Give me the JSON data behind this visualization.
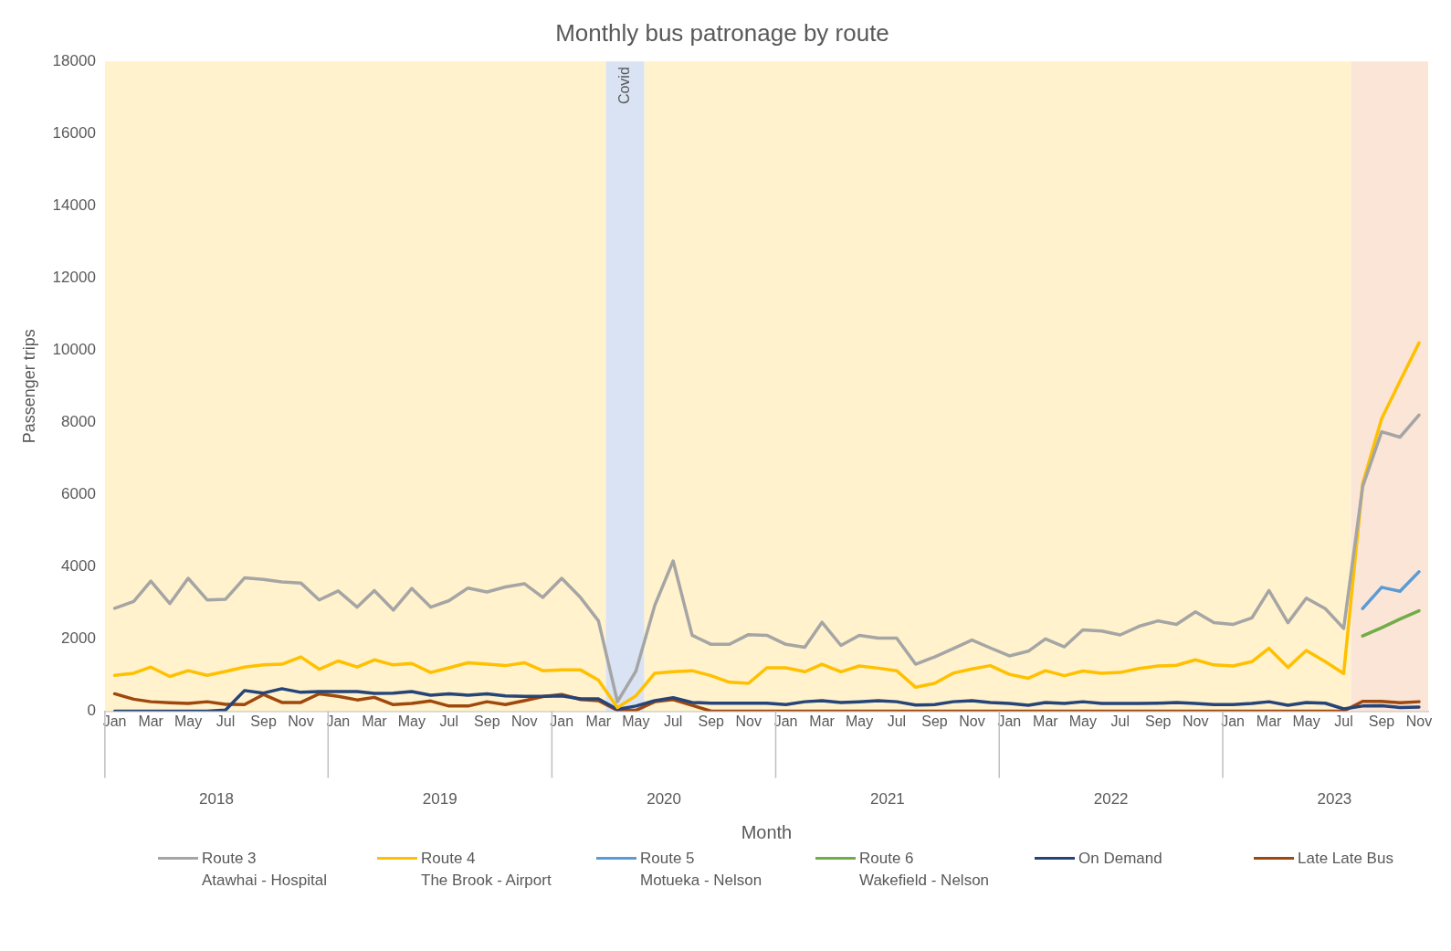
{
  "chart_data": {
    "type": "line",
    "title": "Monthly bus patronage by route",
    "xlabel": "Month",
    "ylabel": "Passenger trips",
    "x": [
      "2018-01",
      "2018-02",
      "2018-03",
      "2018-04",
      "2018-05",
      "2018-06",
      "2018-07",
      "2018-08",
      "2018-09",
      "2018-10",
      "2018-11",
      "2018-12",
      "2019-01",
      "2019-02",
      "2019-03",
      "2019-04",
      "2019-05",
      "2019-06",
      "2019-07",
      "2019-08",
      "2019-09",
      "2019-10",
      "2019-11",
      "2019-12",
      "2020-01",
      "2020-02",
      "2020-03",
      "2020-04",
      "2020-05",
      "2020-06",
      "2020-07",
      "2020-08",
      "2020-09",
      "2020-10",
      "2020-11",
      "2020-12",
      "2021-01",
      "2021-02",
      "2021-03",
      "2021-04",
      "2021-05",
      "2021-06",
      "2021-07",
      "2021-08",
      "2021-09",
      "2021-10",
      "2021-11",
      "2021-12",
      "2022-01",
      "2022-02",
      "2022-03",
      "2022-04",
      "2022-05",
      "2022-06",
      "2022-07",
      "2022-08",
      "2022-09",
      "2022-10",
      "2022-11",
      "2022-12",
      "2023-01",
      "2023-02",
      "2023-03",
      "2023-04",
      "2023-05",
      "2023-06",
      "2023-07",
      "2023-08",
      "2023-09",
      "2023-10",
      "2023-11"
    ],
    "series": [
      {
        "name": "Route 3\nAtawhai - Hospital",
        "color": "#a5a5a5",
        "values": [
          2850,
          3040,
          3600,
          2980,
          3680,
          3080,
          3100,
          3690,
          3650,
          3580,
          3550,
          3080,
          3330,
          2880,
          3340,
          2800,
          3400,
          2880,
          3060,
          3410,
          3300,
          3440,
          3530,
          3150,
          3680,
          3140,
          2500,
          260,
          1100,
          2930,
          4160,
          2100,
          1850,
          1850,
          2120,
          2100,
          1850,
          1770,
          2460,
          1820,
          2100,
          2020,
          2020,
          1300,
          1500,
          1730,
          1970,
          1750,
          1530,
          1660,
          2000,
          1780,
          2250,
          2220,
          2110,
          2350,
          2500,
          2400,
          2750,
          2450,
          2400,
          2580,
          3340,
          2450,
          3130,
          2840,
          2290,
          6220,
          7740,
          7590,
          8200
        ]
      },
      {
        "name": "Route 4\nThe Brook - Airport",
        "color": "#ffc000",
        "values": [
          990,
          1050,
          1220,
          960,
          1120,
          990,
          1100,
          1220,
          1280,
          1300,
          1500,
          1160,
          1390,
          1220,
          1420,
          1280,
          1320,
          1070,
          1200,
          1340,
          1300,
          1260,
          1340,
          1120,
          1140,
          1140,
          860,
          100,
          420,
          1050,
          1090,
          1120,
          980,
          800,
          770,
          1200,
          1200,
          1090,
          1300,
          1090,
          1250,
          1190,
          1120,
          660,
          770,
          1050,
          1170,
          1260,
          1020,
          910,
          1120,
          980,
          1110,
          1050,
          1070,
          1180,
          1250,
          1270,
          1420,
          1280,
          1250,
          1370,
          1740,
          1210,
          1680,
          1370,
          1040,
          6300,
          8100,
          9140,
          10200
        ]
      },
      {
        "name": "Route 5\nMotueka - Nelson",
        "color": "#5b9bd5",
        "x": [
          "2023-08",
          "2023-09",
          "2023-10",
          "2023-11"
        ],
        "values": [
          2840,
          3430,
          3320,
          3860
        ]
      },
      {
        "name": "Route 6\nWakefield - Nelson",
        "color": "#70ad47",
        "x": [
          "2023-08",
          "2023-09",
          "2023-10",
          "2023-11"
        ],
        "values": [
          2080,
          2310,
          2550,
          2780
        ]
      },
      {
        "name": "On Demand",
        "color": "#264478",
        "values": [
          0,
          0,
          0,
          0,
          0,
          0,
          30,
          570,
          500,
          620,
          520,
          540,
          540,
          540,
          490,
          500,
          540,
          440,
          480,
          440,
          480,
          420,
          410,
          410,
          420,
          340,
          340,
          50,
          140,
          290,
          370,
          240,
          220,
          220,
          220,
          220,
          180,
          260,
          290,
          240,
          260,
          290,
          260,
          170,
          180,
          260,
          290,
          240,
          210,
          160,
          240,
          210,
          260,
          210,
          210,
          210,
          220,
          240,
          210,
          180,
          180,
          210,
          260,
          160,
          240,
          220,
          60,
          140,
          150,
          100,
          110
        ]
      },
      {
        "name": "Late Late Bus",
        "color": "#9e480e",
        "values": [
          480,
          330,
          260,
          230,
          210,
          260,
          190,
          180,
          460,
          240,
          240,
          480,
          410,
          310,
          380,
          180,
          210,
          280,
          140,
          140,
          260,
          180,
          290,
          400,
          460,
          320,
          290,
          20,
          20,
          260,
          320,
          160,
          0,
          0,
          0,
          0,
          0,
          0,
          0,
          0,
          0,
          0,
          0,
          0,
          0,
          0,
          0,
          0,
          0,
          0,
          0,
          0,
          0,
          0,
          0,
          0,
          0,
          0,
          0,
          0,
          0,
          0,
          0,
          0,
          0,
          0,
          0,
          270,
          270,
          230,
          260
        ]
      }
    ],
    "xlim": [
      "2017-12-16",
      "2023-11-16"
    ],
    "xticks": [
      {
        "value": "2018-01",
        "label": "Jan"
      },
      {
        "value": "2018-03",
        "label": "Mar"
      },
      {
        "value": "2018-05",
        "label": "May"
      },
      {
        "value": "2018-07",
        "label": "Jul"
      },
      {
        "value": "2018-09",
        "label": "Sep"
      },
      {
        "value": "2018-11",
        "label": "Nov"
      },
      {
        "value": "2019-01",
        "label": "Jan"
      },
      {
        "value": "2019-03",
        "label": "Mar"
      },
      {
        "value": "2019-05",
        "label": "May"
      },
      {
        "value": "2019-07",
        "label": "Jul"
      },
      {
        "value": "2019-09",
        "label": "Sep"
      },
      {
        "value": "2019-11",
        "label": "Nov"
      },
      {
        "value": "2020-01",
        "label": "Jan"
      },
      {
        "value": "2020-03",
        "label": "Mar"
      },
      {
        "value": "2020-05",
        "label": "May"
      },
      {
        "value": "2020-07",
        "label": "Jul"
      },
      {
        "value": "2020-09",
        "label": "Sep"
      },
      {
        "value": "2020-11",
        "label": "Nov"
      },
      {
        "value": "2021-01",
        "label": "Jan"
      },
      {
        "value": "2021-03",
        "label": "Mar"
      },
      {
        "value": "2021-05",
        "label": "May"
      },
      {
        "value": "2021-07",
        "label": "Jul"
      },
      {
        "value": "2021-09",
        "label": "Sep"
      },
      {
        "value": "2021-11",
        "label": "Nov"
      },
      {
        "value": "2022-01",
        "label": "Jan"
      },
      {
        "value": "2022-03",
        "label": "Mar"
      },
      {
        "value": "2022-05",
        "label": "May"
      },
      {
        "value": "2022-07",
        "label": "Jul"
      },
      {
        "value": "2022-09",
        "label": "Sep"
      },
      {
        "value": "2022-11",
        "label": "Nov"
      },
      {
        "value": "2023-01",
        "label": "Jan"
      },
      {
        "value": "2023-03",
        "label": "Mar"
      },
      {
        "value": "2023-05",
        "label": "May"
      },
      {
        "value": "2023-07",
        "label": "Jul"
      },
      {
        "value": "2023-09",
        "label": "Sep"
      },
      {
        "value": "2023-11",
        "label": "Nov"
      }
    ],
    "x2lim": [
      "2017-12-16",
      "2023-11-16"
    ],
    "x2ticks": [
      {
        "value": "2018-06-16",
        "label": "2018"
      },
      {
        "value": "2019-06-16",
        "label": "2019"
      },
      {
        "value": "2020-06-16",
        "label": "2020"
      },
      {
        "value": "2021-06-16",
        "label": "2021"
      },
      {
        "value": "2022-06-16",
        "label": "2022"
      },
      {
        "value": "2023-06-16",
        "label": "2023"
      }
    ],
    "ylim": [
      0,
      18000
    ],
    "yticks": [
      0,
      2000,
      4000,
      6000,
      8000,
      10000,
      12000,
      14000,
      16000,
      18000
    ],
    "bands": [
      {
        "axis": "x",
        "from": "2017-12-16",
        "to": "2020-03-13",
        "color": "#fff2cc"
      },
      {
        "axis": "x",
        "from": "2020-03-13",
        "to": "2020-05-15",
        "color": "#dae3f3",
        "label": "Covid"
      },
      {
        "axis": "x",
        "from": "2020-05-15",
        "to": "2023-07-13",
        "color": "#fff2cc"
      },
      {
        "axis": "x",
        "from": "2023-07-13",
        "to": "2023-11-16",
        "color": "#fbe5d6"
      }
    ],
    "grid": false,
    "legend": "bottom",
    "marker": "none",
    "line_style": "solid"
  }
}
